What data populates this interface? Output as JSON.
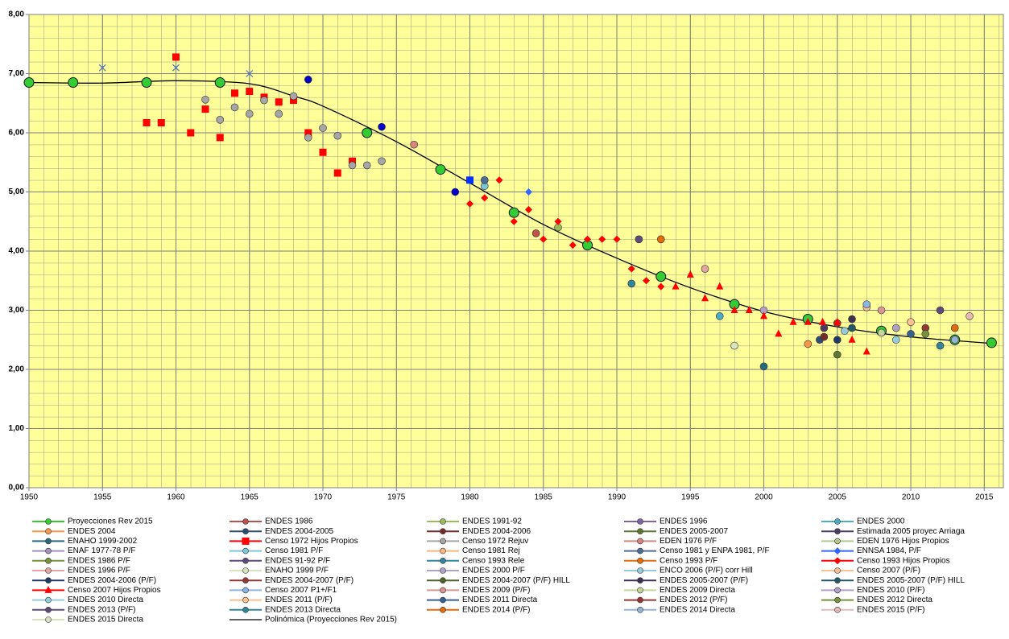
{
  "chart_data": {
    "type": "scatter",
    "xlim": [
      1950,
      2016.3
    ],
    "ylim": [
      0,
      8
    ],
    "xticks": [
      1950,
      1955,
      1960,
      1965,
      1970,
      1975,
      1980,
      1985,
      1990,
      1995,
      2000,
      2005,
      2010,
      2015
    ],
    "yticks": [
      {
        "value": 0,
        "label": "0,00"
      },
      {
        "value": 1,
        "label": "1,00"
      },
      {
        "value": 2,
        "label": "2,00"
      },
      {
        "value": 3,
        "label": "3,00"
      },
      {
        "value": 4,
        "label": "4,00"
      },
      {
        "value": 5,
        "label": "5,00"
      },
      {
        "value": 6,
        "label": "6,00"
      },
      {
        "value": 7,
        "label": "7,00"
      },
      {
        "value": 8,
        "label": "8,00"
      }
    ],
    "grid": true,
    "background": "#ffff99",
    "series": [
      {
        "name": "Proyecciones Rev 2015",
        "color": "#33cc33",
        "marker": "circle",
        "x": [
          1950,
          1953,
          1958,
          1963,
          1973,
          1978,
          1983,
          1988,
          1993,
          1998,
          2003,
          2008,
          2013,
          2015.5
        ],
        "y": [
          6.85,
          6.85,
          6.85,
          6.85,
          6.0,
          5.38,
          4.65,
          4.1,
          3.57,
          3.1,
          2.85,
          2.65,
          2.5,
          2.45
        ]
      },
      {
        "name": "ENDES 1986",
        "color": "#c0504d",
        "marker": "circle",
        "x": [
          1984.5
        ],
        "y": [
          4.3
        ]
      },
      {
        "name": "ENDES 1991-92",
        "color": "#9bbb59",
        "marker": "circle",
        "x": [
          1986
        ],
        "y": [
          4.4
        ]
      },
      {
        "name": "ENDES 1996",
        "color": "#8064a2",
        "marker": "circle",
        "x": [],
        "y": []
      },
      {
        "name": "ENDES 2000",
        "color": "#4bacc6",
        "marker": "circle",
        "x": [
          1997
        ],
        "y": [
          2.9
        ]
      },
      {
        "name": "ENDES 2004",
        "color": "#f79646",
        "marker": "circle",
        "x": [
          2003
        ],
        "y": [
          2.43
        ]
      },
      {
        "name": "ENDES 2004-2005",
        "color": "#2c4d75",
        "marker": "circle",
        "x": [
          2003.8
        ],
        "y": [
          2.5
        ]
      },
      {
        "name": "ENDES 2004-2006",
        "color": "#772c2a",
        "marker": "circle",
        "x": [
          2004.1
        ],
        "y": [
          2.55
        ]
      },
      {
        "name": "ENDES 2005-2007",
        "color": "#5f7530",
        "marker": "circle",
        "x": [
          2005
        ],
        "y": [
          2.25
        ]
      },
      {
        "name": "Estimada 2005 proyec Arriaga",
        "color": "#4d3b62",
        "marker": "circle",
        "x": [
          2004.1
        ],
        "y": [
          2.7
        ]
      },
      {
        "name": "ENAHO 1999-2002",
        "color": "#276a7c",
        "marker": "circle",
        "x": [
          2000
        ],
        "y": [
          2.05
        ]
      },
      {
        "name": "Censo 1972 Hijos Propios",
        "color": "#ff0000",
        "marker": "square",
        "x": [
          1958,
          1959,
          1960,
          1961,
          1962,
          1963,
          1964,
          1965,
          1966,
          1967,
          1968,
          1969,
          1970,
          1971,
          1972
        ],
        "y": [
          6.17,
          6.17,
          7.28,
          6.0,
          6.4,
          5.92,
          6.67,
          6.7,
          6.6,
          6.52,
          6.55,
          6.0,
          5.67,
          5.32,
          5.52
        ]
      },
      {
        "name": "Censo 1972 Rejuv",
        "color": "#a6a6a6",
        "marker": "circle",
        "x": [
          1962,
          1963,
          1964,
          1965,
          1966,
          1967,
          1968,
          1969,
          1970,
          1971,
          1972,
          1973,
          1974
        ],
        "y": [
          6.56,
          6.22,
          6.43,
          6.32,
          6.55,
          6.32,
          6.62,
          5.92,
          6.08,
          5.95,
          5.45,
          5.45,
          5.52
        ]
      },
      {
        "name": "EDEN 1976 P/F",
        "color": "#d9847f",
        "marker": "circle",
        "x": [
          1976.2
        ],
        "y": [
          5.8
        ]
      },
      {
        "name": "EDEN 1976 Hijos Propios",
        "color": "#b3c98a",
        "marker": "circle",
        "x": [],
        "y": []
      },
      {
        "name": "ENAF 1977-78 P/F",
        "color": "#a18fbd",
        "marker": "circle",
        "x": [],
        "y": []
      },
      {
        "name": "Censo 1981 P/F",
        "color": "#7fc6d9",
        "marker": "circle",
        "x": [
          1981
        ],
        "y": [
          5.1
        ]
      },
      {
        "name": "Censo 1981 Rej",
        "color": "#fab47e",
        "marker": "circle",
        "x": [],
        "y": []
      },
      {
        "name": "Censo 1981 y ENPA 1981, P/F",
        "color": "#4f6d94",
        "marker": "circle",
        "x": [
          1981
        ],
        "y": [
          5.2
        ]
      },
      {
        "name": "ENNSA 1984, P/F",
        "color": "#3366ff",
        "marker": "diamond",
        "x": [
          1984
        ],
        "y": [
          5.0
        ]
      },
      {
        "name": "ENDES 1986 P/F",
        "color": "#77933c",
        "marker": "circle",
        "x": [],
        "y": []
      },
      {
        "name": "ENDES 91-92 P/F",
        "color": "#604a7b",
        "marker": "circle",
        "x": [
          1991.5
        ],
        "y": [
          4.2
        ]
      },
      {
        "name": "Censo 1993 Rele",
        "color": "#31859c",
        "marker": "circle",
        "x": [
          1991
        ],
        "y": [
          3.45
        ]
      },
      {
        "name": "Censo 1993 P/F",
        "color": "#e46c0a",
        "marker": "circle",
        "x": [
          1993
        ],
        "y": [
          4.2
        ]
      },
      {
        "name": "Censo 1993 Hijos Propios",
        "color": "#ff0000",
        "marker": "diamond",
        "x": [
          1980,
          1981,
          1982,
          1983,
          1984,
          1985,
          1986,
          1987,
          1988,
          1989,
          1990,
          1991,
          1992,
          1993
        ],
        "y": [
          4.8,
          4.9,
          5.2,
          4.5,
          4.7,
          4.2,
          4.5,
          4.1,
          4.2,
          4.2,
          4.2,
          3.7,
          3.5,
          3.4
        ]
      },
      {
        "name": "ENDES 1996 P/F",
        "color": "#e6a5a3",
        "marker": "circle",
        "x": [
          1996
        ],
        "y": [
          3.7
        ]
      },
      {
        "name": "ENAHO 1999 P/F",
        "color": "#d7e4bd",
        "marker": "circle",
        "x": [
          1998
        ],
        "y": [
          2.4
        ]
      },
      {
        "name": "ENDES 2000 P/F",
        "color": "#b3a2c7",
        "marker": "circle",
        "x": [
          2000
        ],
        "y": [
          3.0
        ]
      },
      {
        "name": "ENCO 2006 (P/F) corr Hill",
        "color": "#93cddd",
        "marker": "circle",
        "x": [
          2005.5
        ],
        "y": [
          2.65
        ]
      },
      {
        "name": "Censo 2007 (P/F)",
        "color": "#fac090",
        "marker": "circle",
        "x": [
          2007
        ],
        "y": [
          3.05
        ]
      },
      {
        "name": "ENDES 2004-2006 (P/F)",
        "color": "#1f3864",
        "marker": "circle",
        "x": [
          2005
        ],
        "y": [
          2.5
        ]
      },
      {
        "name": "ENDES 2004-2007 (P/F)",
        "color": "#953735",
        "marker": "circle",
        "x": [
          2005
        ],
        "y": [
          2.78
        ]
      },
      {
        "name": "ENDES 2004-2007 (P/F) HILL",
        "color": "#4f6228",
        "marker": "circle",
        "x": [],
        "y": []
      },
      {
        "name": "ENDES 2005-2007 (P/F)",
        "color": "#3f3151",
        "marker": "circle",
        "x": [
          2006
        ],
        "y": [
          2.85
        ]
      },
      {
        "name": "ENDES 2005-2007 (P/F) HILL",
        "color": "#215967",
        "marker": "circle",
        "x": [
          2006
        ],
        "y": [
          2.7
        ]
      },
      {
        "name": "Censo 2007 Hijos Propios",
        "color": "#ff0000",
        "marker": "triangle",
        "x": [
          1994,
          1995,
          1996,
          1997,
          1998,
          1999,
          2000,
          2001,
          2002,
          2003,
          2004,
          2005,
          2006,
          2007
        ],
        "y": [
          3.4,
          3.6,
          3.2,
          3.4,
          3.0,
          3.0,
          2.9,
          2.6,
          2.8,
          2.8,
          2.8,
          2.8,
          2.5,
          2.3
        ]
      },
      {
        "name": "Censo 2007 P1+/F1",
        "color": "#8eb4e3",
        "marker": "circle",
        "x": [
          2007
        ],
        "y": [
          3.1
        ]
      },
      {
        "name": "ENDES 2009 (P/F)",
        "color": "#d99694",
        "marker": "circle",
        "x": [
          2008
        ],
        "y": [
          3.0
        ]
      },
      {
        "name": "ENDES 2009 Directa",
        "color": "#c3d69b",
        "marker": "circle",
        "x": [
          2008
        ],
        "y": [
          2.62
        ]
      },
      {
        "name": "ENDES 2010 (P/F)",
        "color": "#b1a0c7",
        "marker": "circle",
        "x": [
          2009
        ],
        "y": [
          2.7
        ]
      },
      {
        "name": "ENDES 2010 Directa",
        "color": "#92cddc",
        "marker": "circle",
        "x": [
          2009
        ],
        "y": [
          2.5
        ]
      },
      {
        "name": "ENDES 2011 (P/F)",
        "color": "#fac08f",
        "marker": "circle",
        "x": [
          2010
        ],
        "y": [
          2.8
        ]
      },
      {
        "name": "ENDES 2011 Directa",
        "color": "#366092",
        "marker": "circle",
        "x": [
          2010
        ],
        "y": [
          2.6
        ]
      },
      {
        "name": "ENDES 2012 (P/F)",
        "color": "#963634",
        "marker": "circle",
        "x": [
          2011
        ],
        "y": [
          2.7
        ]
      },
      {
        "name": "ENDES 2012 Directa",
        "color": "#76923c",
        "marker": "circle",
        "x": [
          2011
        ],
        "y": [
          2.6
        ]
      },
      {
        "name": "ENDES 2013 (P/F)",
        "color": "#5f497a",
        "marker": "circle",
        "x": [
          2012
        ],
        "y": [
          3.0
        ]
      },
      {
        "name": "ENDES 2013 Directa",
        "color": "#31849b",
        "marker": "circle",
        "x": [
          2012
        ],
        "y": [
          2.4
        ]
      },
      {
        "name": "ENDES 2014 (P/F)",
        "color": "#e26b0a",
        "marker": "circle",
        "x": [
          2013
        ],
        "y": [
          2.7
        ]
      },
      {
        "name": "ENDES 2014 Directa",
        "color": "#95b3d7",
        "marker": "circle",
        "x": [
          2013
        ],
        "y": [
          2.5
        ]
      },
      {
        "name": "ENDES 2015 (P/F)",
        "color": "#e6b9b8",
        "marker": "circle",
        "x": [
          2014
        ],
        "y": [
          2.9
        ]
      },
      {
        "name": "ENDES 2015 Directa",
        "color": "#d8e4bc",
        "marker": "circle",
        "x": [],
        "y": []
      },
      {
        "name": "Polinómica (Proyecciones Rev 2015)",
        "color": "#000000",
        "marker": "line",
        "x": [
          1950,
          1955,
          1960,
          1965,
          1968,
          1970,
          1975,
          1980,
          1985,
          1990,
          1995,
          2000,
          2005,
          2010,
          2015.5
        ],
        "y": [
          6.85,
          6.84,
          6.88,
          6.83,
          6.62,
          6.45,
          5.85,
          5.15,
          4.45,
          3.88,
          3.38,
          2.98,
          2.72,
          2.55,
          2.44
        ]
      },
      {
        "color": "#4472c4",
        "marker": "x",
        "x": [
          1955,
          1960,
          1965
        ],
        "y": [
          7.1,
          7.1,
          7.0
        ]
      },
      {
        "color": "#0000cc",
        "marker": "circle",
        "x": [
          1969,
          1974,
          1979
        ],
        "y": [
          6.9,
          6.1,
          5.0
        ]
      },
      {
        "color": "#0033ff",
        "marker": "square",
        "x": [
          1980
        ],
        "y": [
          5.2
        ]
      }
    ]
  }
}
